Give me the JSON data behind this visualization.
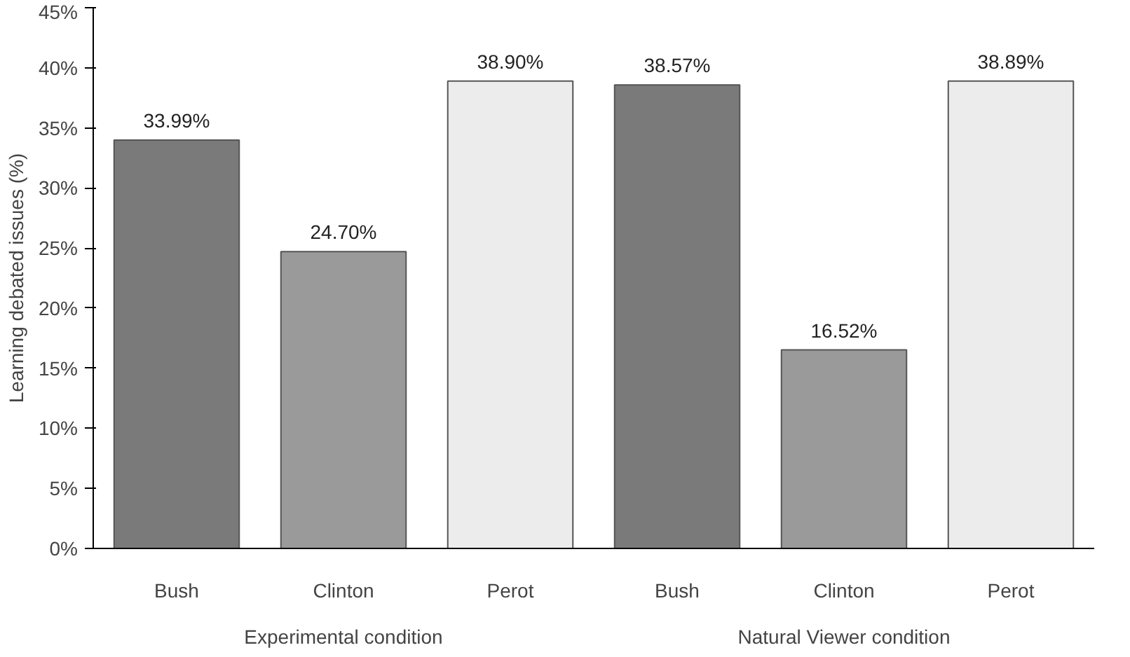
{
  "chart_data": {
    "type": "bar",
    "ylabel": "Learning debated issues (%)",
    "categories": [
      "Bush",
      "Clinton",
      "Perot",
      "Bush",
      "Clinton",
      "Perot"
    ],
    "values": [
      33.99,
      24.7,
      38.9,
      38.57,
      16.52,
      38.89
    ],
    "value_labels": [
      "33.99%",
      "24.70%",
      "38.90%",
      "38.57%",
      "16.52%",
      "38.89%"
    ],
    "colors": [
      "#7a7a7a",
      "#9a9a9a",
      "#ececec",
      "#7a7a7a",
      "#9a9a9a",
      "#ececec"
    ],
    "annotations": [
      "Experimental condition",
      "Natural Viewer condition"
    ],
    "ylim": [
      0,
      45
    ],
    "yticks": [
      {
        "value": 0,
        "label": "0%"
      },
      {
        "value": 5,
        "label": "5%"
      },
      {
        "value": 10,
        "label": "10%"
      },
      {
        "value": 15,
        "label": "15%"
      },
      {
        "value": 20,
        "label": "20%"
      },
      {
        "value": 25,
        "label": "25%"
      },
      {
        "value": 30,
        "label": "30%"
      },
      {
        "value": 35,
        "label": "35%"
      },
      {
        "value": 40,
        "label": "40%"
      },
      {
        "value": 45,
        "label": "45%"
      }
    ],
    "grid": false
  }
}
